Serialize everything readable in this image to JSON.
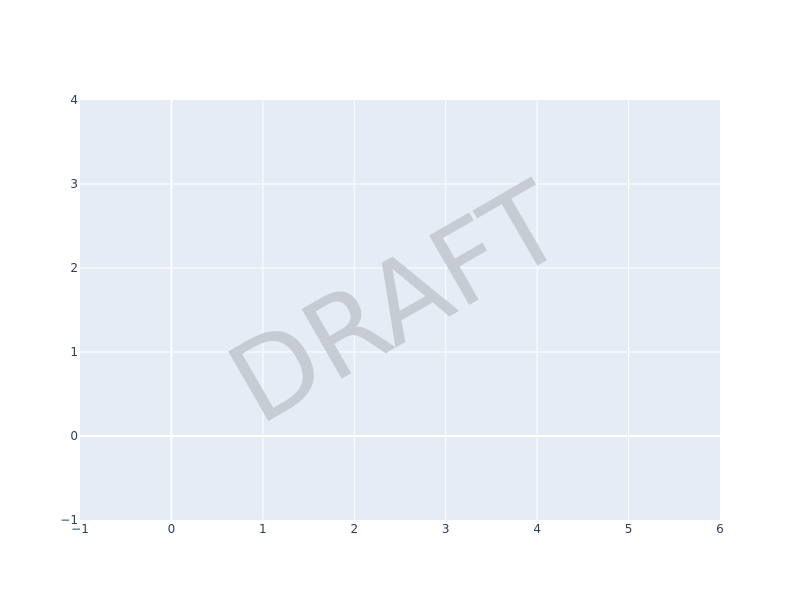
{
  "chart_data": {
    "type": "scatter",
    "series": [],
    "xlim": [
      -1,
      6
    ],
    "ylim": [
      -1,
      4
    ],
    "x_ticks": [
      "−1",
      "0",
      "1",
      "2",
      "3",
      "4",
      "5",
      "6"
    ],
    "y_ticks": [
      "−1",
      "0",
      "1",
      "2",
      "3",
      "4"
    ],
    "x_tick_values": [
      -1,
      0,
      1,
      2,
      3,
      4,
      5,
      6
    ],
    "y_tick_values": [
      -1,
      0,
      1,
      2,
      3,
      4
    ],
    "grid": true,
    "annotation": {
      "text": "DRAFT",
      "rotation_deg": -30
    }
  },
  "colors": {
    "plot_background": "#e5ecf6",
    "grid": "#ffffff",
    "tick_text": "#2a3f5f",
    "watermark": "#c7ccd4"
  }
}
